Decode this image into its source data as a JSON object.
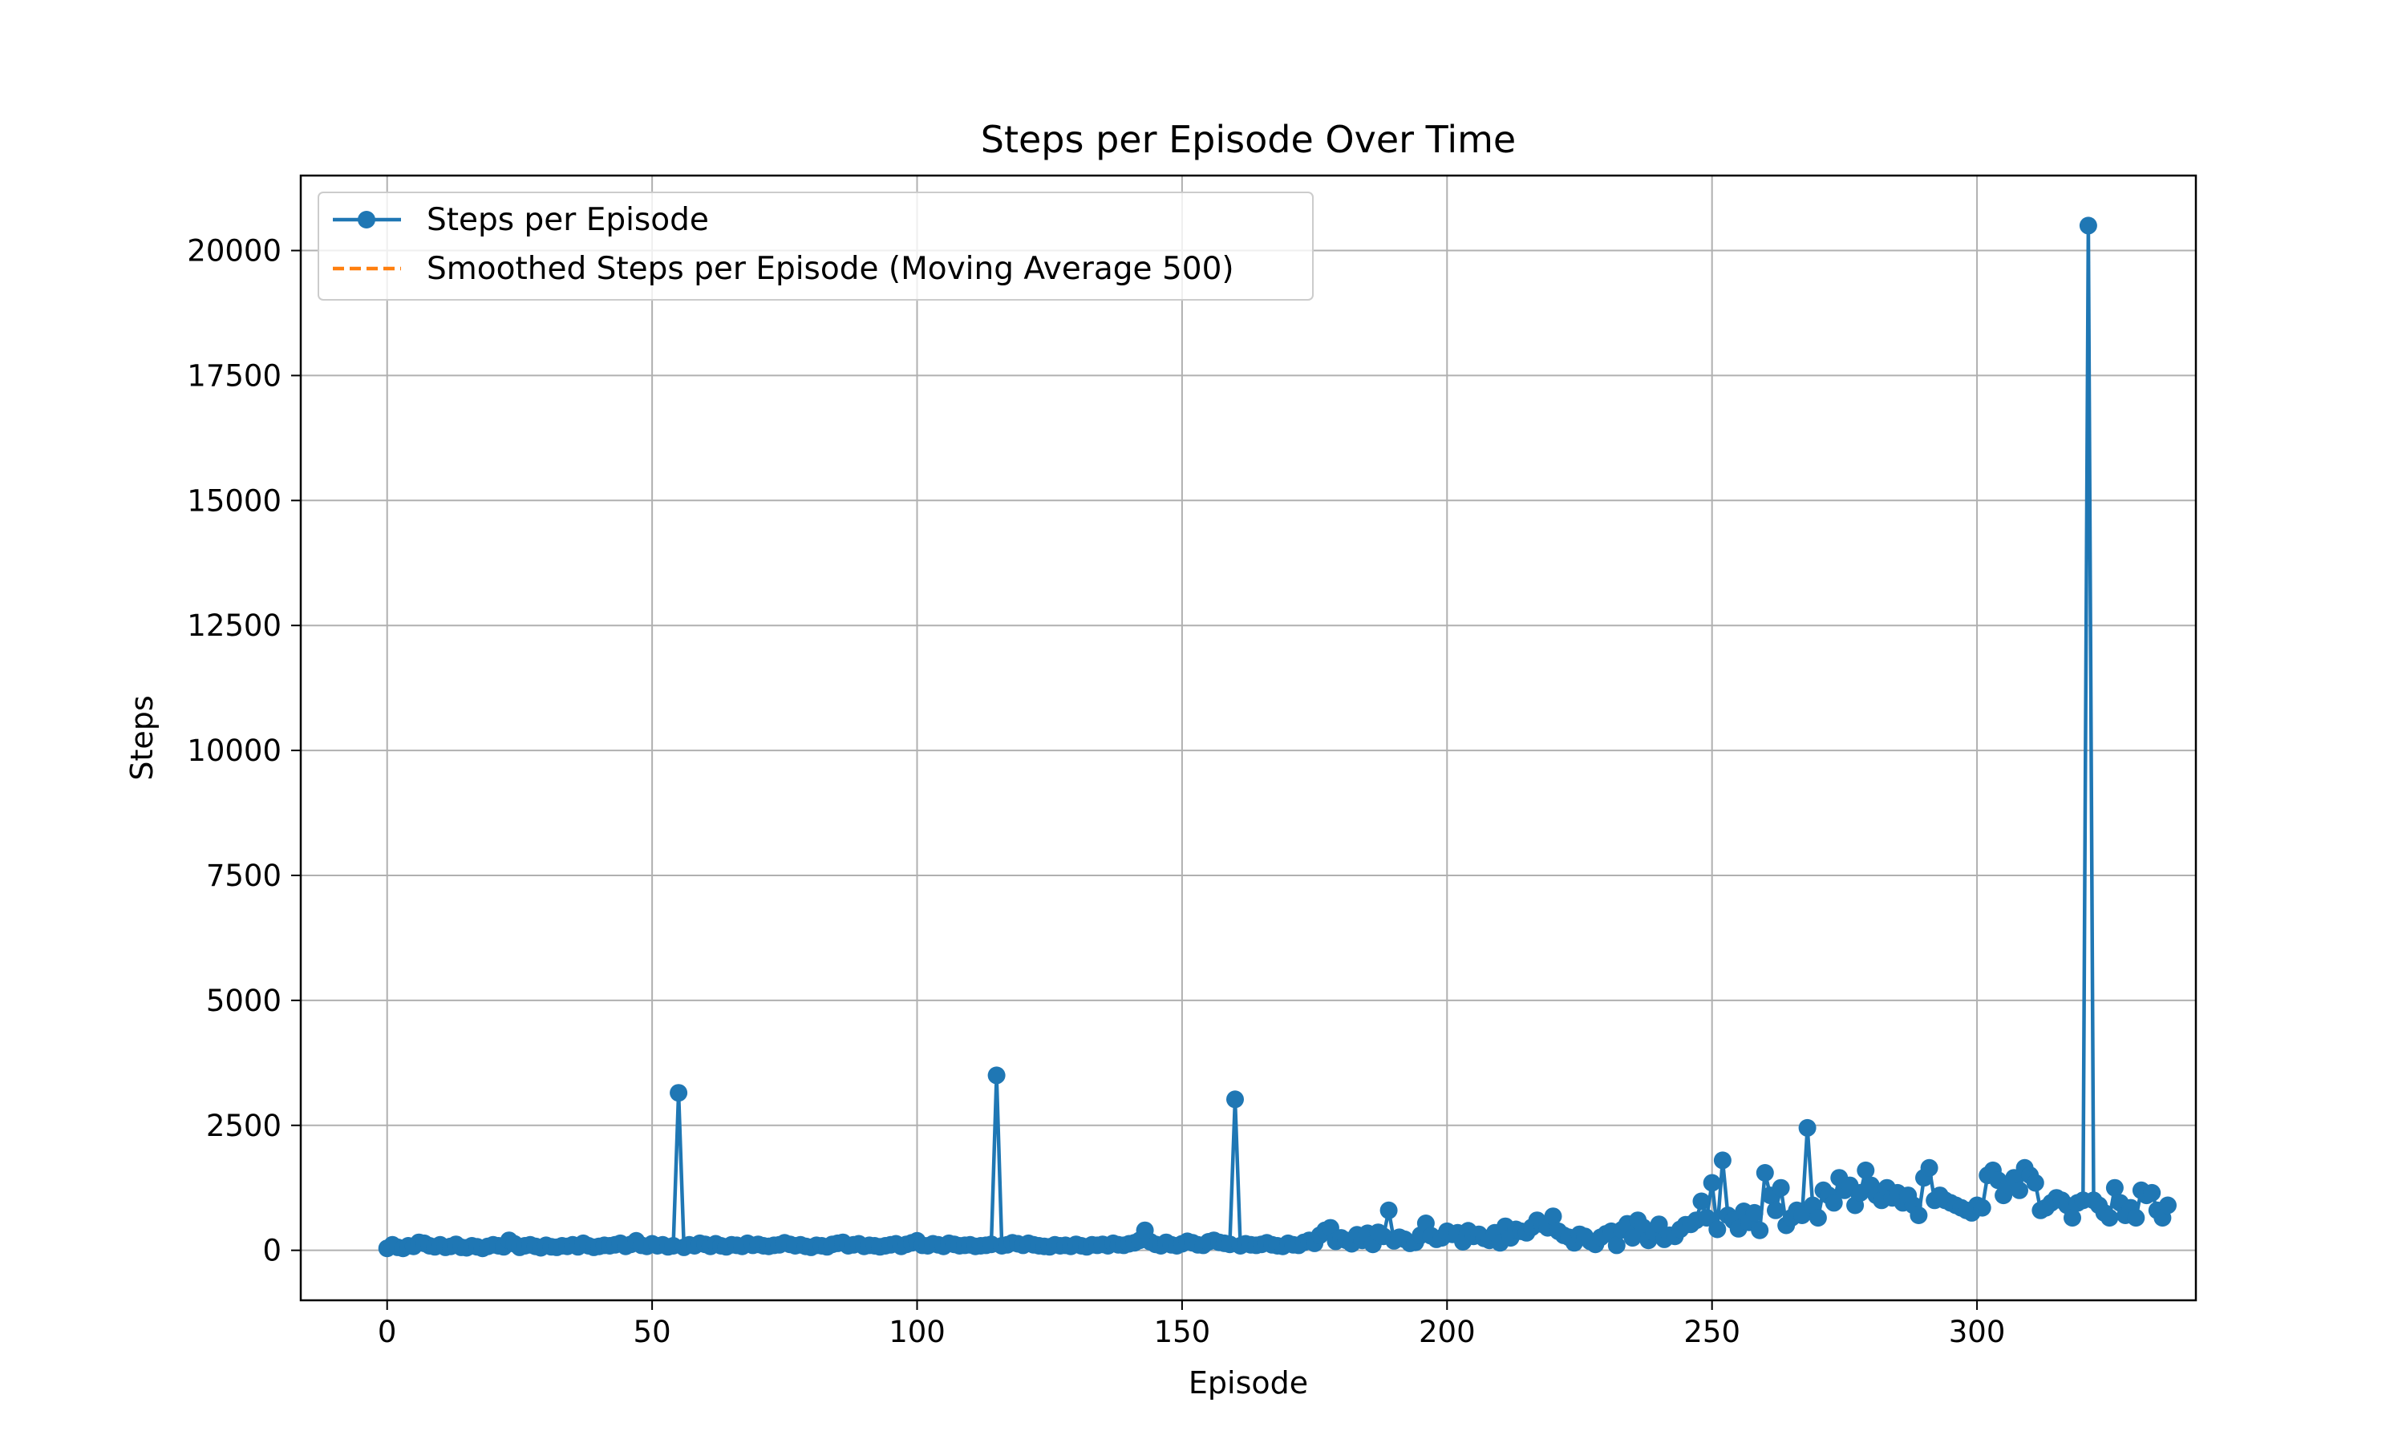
{
  "chart_data": {
    "type": "line",
    "title": "Steps per Episode Over Time",
    "xlabel": "Episode",
    "ylabel": "Steps",
    "xlim": [
      -16.3,
      341.3
    ],
    "ylim": [
      -1000,
      21500
    ],
    "xticks": [
      0,
      50,
      100,
      150,
      200,
      250,
      300
    ],
    "yticks": [
      0,
      2500,
      5000,
      7500,
      10000,
      12500,
      15000,
      17500,
      20000
    ],
    "grid": true,
    "legend_position": "upper left",
    "legend": [
      {
        "label": "Steps per Episode",
        "color": "#1f77b4",
        "style": "solid-marker"
      },
      {
        "label": "Smoothed Steps per Episode (Moving Average 500)",
        "color": "#ff7f0e",
        "style": "dashed"
      }
    ],
    "series": [
      {
        "name": "Steps per Episode",
        "color": "#1f77b4",
        "x_start": 0,
        "values": [
          40,
          110,
          60,
          40,
          90,
          80,
          160,
          140,
          90,
          70,
          110,
          60,
          80,
          120,
          60,
          50,
          90,
          70,
          40,
          80,
          110,
          90,
          70,
          200,
          130,
          60,
          90,
          110,
          80,
          50,
          100,
          70,
          60,
          90,
          80,
          110,
          70,
          140,
          90,
          60,
          80,
          100,
          90,
          110,
          140,
          80,
          120,
          190,
          100,
          80,
          130,
          90,
          110,
          70,
          90,
          3150,
          60,
          110,
          90,
          140,
          120,
          80,
          130,
          90,
          70,
          110,
          100,
          80,
          140,
          100,
          120,
          90,
          80,
          100,
          110,
          150,
          120,
          90,
          110,
          80,
          60,
          100,
          90,
          70,
          120,
          140,
          160,
          90,
          110,
          130,
          80,
          100,
          90,
          70,
          90,
          110,
          130,
          80,
          120,
          150,
          190,
          100,
          90,
          130,
          110,
          80,
          140,
          120,
          90,
          100,
          110,
          80,
          90,
          100,
          120,
          3500,
          90,
          110,
          150,
          130,
          100,
          140,
          110,
          90,
          80,
          70,
          110,
          90,
          100,
          80,
          120,
          90,
          70,
          110,
          100,
          120,
          90,
          140,
          110,
          100,
          130,
          150,
          200,
          400,
          170,
          120,
          90,
          160,
          110,
          90,
          130,
          180,
          150,
          110,
          100,
          170,
          200,
          160,
          140,
          120,
          3020,
          90,
          130,
          110,
          100,
          120,
          150,
          110,
          90,
          80,
          140,
          110,
          100,
          160,
          200,
          140,
          300,
          400,
          450,
          180,
          250,
          200,
          130,
          310,
          200,
          340,
          120,
          360,
          280,
          800,
          190,
          260,
          220,
          140,
          160,
          300,
          540,
          290,
          220,
          250,
          380,
          320,
          350,
          170,
          390,
          280,
          320,
          240,
          200,
          350,
          150,
          480,
          250,
          420,
          380,
          350,
          460,
          600,
          520,
          450,
          680,
          380,
          300,
          260,
          150,
          320,
          280,
          180,
          120,
          260,
          330,
          380,
          100,
          410,
          530,
          250,
          600,
          460,
          200,
          360,
          520,
          220,
          300,
          280,
          420,
          510,
          520,
          600,
          980,
          650,
          1350,
          420,
          1800,
          700,
          600,
          430,
          780,
          560,
          750,
          400,
          1550,
          1100,
          800,
          1250,
          500,
          650,
          800,
          700,
          2450,
          900,
          650,
          1200,
          1100,
          950,
          1450,
          1200,
          1300,
          900,
          1150,
          1600,
          1300,
          1100,
          1000,
          1250,
          1050,
          1150,
          950,
          1100,
          900,
          700,
          1450,
          1650,
          1000,
          1100,
          1000,
          950,
          900,
          850,
          800,
          750,
          900,
          850,
          1500,
          1600,
          1400,
          1100,
          1300,
          1450,
          1200,
          1650,
          1500,
          1350,
          800,
          850,
          950,
          1050,
          1000,
          900,
          650,
          950,
          1000,
          20500,
          1000,
          900,
          750,
          650,
          1250,
          950,
          700,
          850,
          650,
          1200,
          1100,
          1150,
          800,
          650,
          900
        ]
      },
      {
        "name": "Smoothed Steps per Episode (Moving Average 500)",
        "color": "#ff7f0e",
        "values": []
      }
    ]
  }
}
